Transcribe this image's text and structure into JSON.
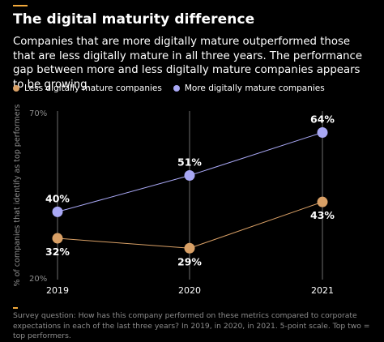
{
  "header": {
    "title": "The digital maturity difference",
    "subtitle": "Companies that are more digitally mature outperformed those that are less digitally mature in all three years. The performance gap between more and less digitally mature companies appears to be growing.",
    "accent_color": "#f2a93b"
  },
  "legend": {
    "items": [
      {
        "label": "Less digitally mature companies",
        "color": "#d9a066"
      },
      {
        "label": "More digitally mature companies",
        "color": "#a9a8f5"
      }
    ]
  },
  "footnote": {
    "text": "Survey question: How has this company performed on these metrics compared to corporate expectations in each of the last three years? In 2019, in 2020, in 2021. 5-point scale. Top two = top performers."
  },
  "chart_data": {
    "type": "line",
    "categories": [
      "2019",
      "2020",
      "2021"
    ],
    "ylabel": "% of companies that identify as top performers",
    "ylim": [
      20,
      70
    ],
    "yticks": [
      "70%",
      "20%"
    ],
    "series": [
      {
        "name": "Less digitally mature companies",
        "values": [
          32,
          29,
          43
        ],
        "labels": [
          "32%",
          "29%",
          "43%"
        ],
        "color": "#d9a066"
      },
      {
        "name": "More digitally mature companies",
        "values": [
          40,
          51,
          64
        ],
        "labels": [
          "40%",
          "51%",
          "64%"
        ],
        "color": "#a9a8f5"
      }
    ],
    "grid": true
  }
}
